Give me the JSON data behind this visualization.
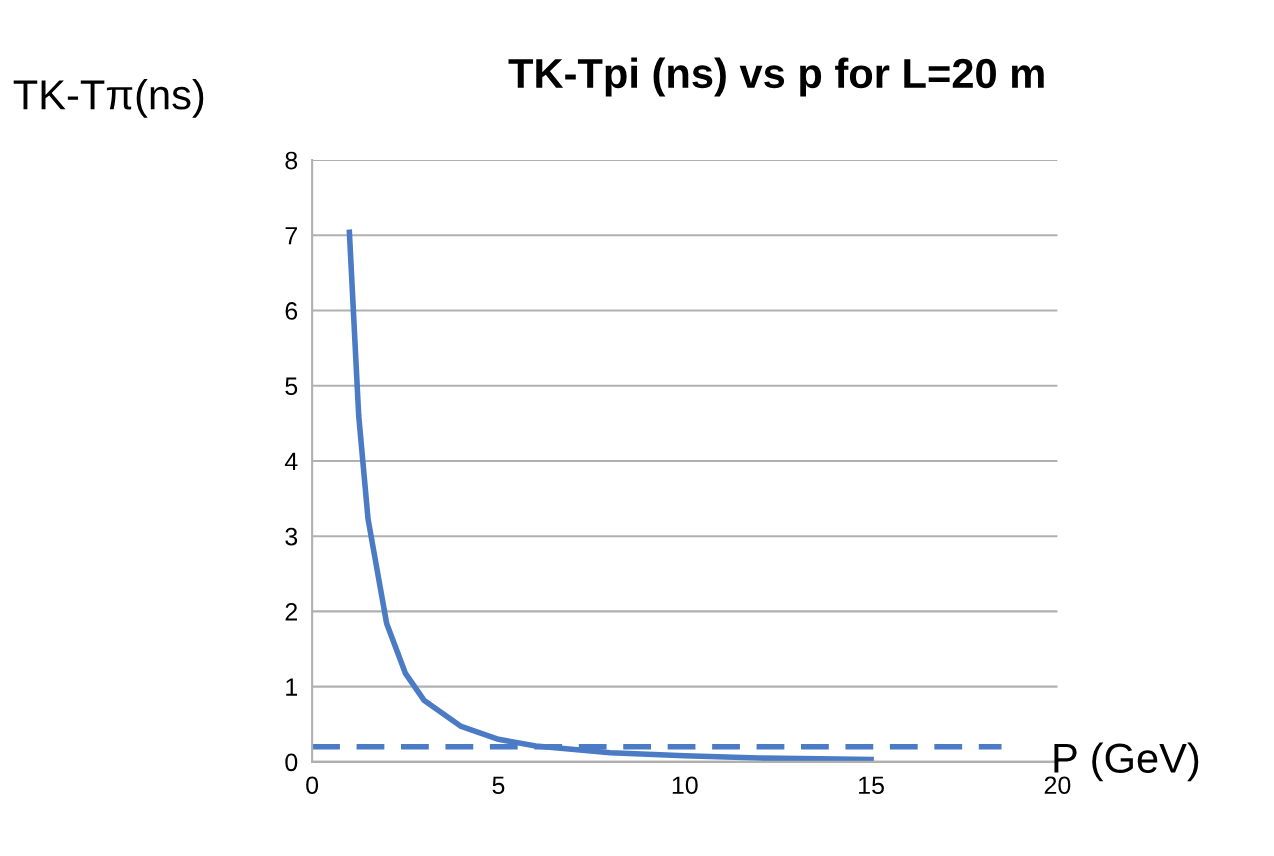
{
  "chart_data": {
    "type": "line",
    "title": "TK-Tpi (ns) vs p for L=20 m",
    "ylabel": "TK-Tπ(ns)",
    "xlabel": "P (GeV)",
    "series": [
      {
        "color": "#4a7bc4",
        "x": [
          1,
          1.25,
          1.5,
          2,
          2.5,
          3,
          4,
          5,
          6,
          8,
          10,
          12,
          15
        ],
        "values": [
          7.04,
          4.6,
          3.23,
          1.84,
          1.18,
          0.82,
          0.47,
          0.3,
          0.21,
          0.12,
          0.08,
          0.05,
          0.03
        ]
      },
      {
        "color": "#4a7bc4",
        "line_style": "dashed",
        "x": [
          0,
          18.5
        ],
        "values": [
          0.2,
          0.2
        ]
      }
    ],
    "xlim": [
      0,
      20
    ],
    "xticks": [
      0,
      5,
      10,
      15,
      20
    ],
    "ylim": [
      0,
      8
    ],
    "yticks": [
      0,
      1,
      2,
      3,
      4,
      5,
      6,
      7,
      8
    ],
    "grid": "y",
    "legend": false
  }
}
